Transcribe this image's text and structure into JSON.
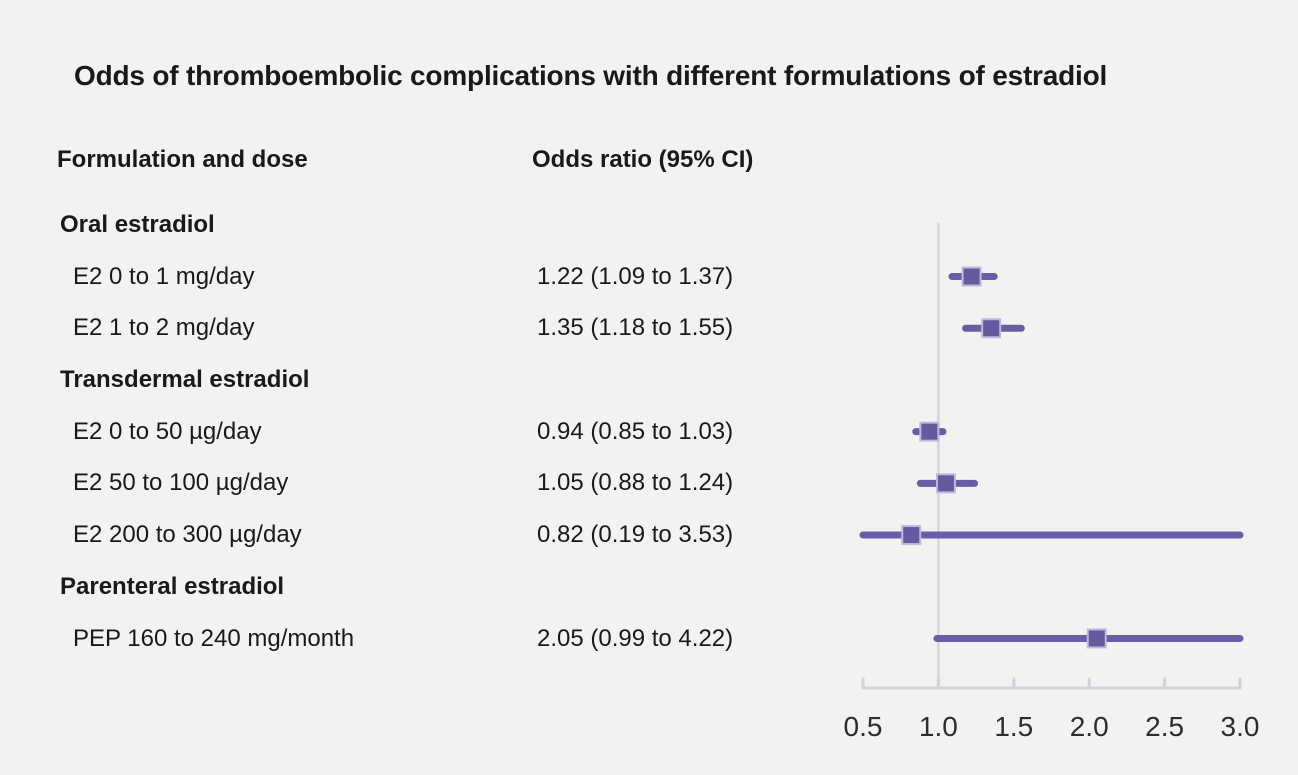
{
  "chart_data": {
    "type": "forest",
    "title": "Odds of thromboembolic complications with different formulations of estradiol",
    "columns": {
      "label": "Formulation and dose",
      "value": "Odds ratio (95% CI)"
    },
    "rows": [
      {
        "label": "Oral estradiol",
        "group": true
      },
      {
        "label": "E2 0 to 1 mg/day",
        "value_text": "1.22 (1.09 to 1.37)",
        "or": 1.22,
        "lo": 1.09,
        "hi": 1.37
      },
      {
        "label": "E2 1 to 2 mg/day",
        "value_text": "1.35 (1.18 to 1.55)",
        "or": 1.35,
        "lo": 1.18,
        "hi": 1.55
      },
      {
        "label": "Transdermal estradiol",
        "group": true
      },
      {
        "label": "E2 0 to 50 µg/day",
        "value_text": "0.94 (0.85 to 1.03)",
        "or": 0.94,
        "lo": 0.85,
        "hi": 1.03
      },
      {
        "label": "E2 50 to 100 µg/day",
        "value_text": "1.05 (0.88 to 1.24)",
        "or": 1.05,
        "lo": 0.88,
        "hi": 1.24
      },
      {
        "label": "E2 200 to 300 µg/day",
        "value_text": "0.82 (0.19 to 3.53)",
        "or": 0.82,
        "lo": 0.19,
        "hi": 3.53
      },
      {
        "label": "Parenteral estradiol",
        "group": true
      },
      {
        "label": "PEP 160 to 240 mg/month",
        "value_text": "2.05 (0.99 to 4.22)",
        "or": 2.05,
        "lo": 0.99,
        "hi": 4.22
      }
    ],
    "xlim": [
      0.5,
      3.0
    ],
    "xticks": [
      0.5,
      1.0,
      1.5,
      2.0,
      2.5,
      3.0
    ],
    "xtick_labels": [
      "0.5",
      "1.0",
      "1.5",
      "2.0",
      "2.5",
      "3.0"
    ],
    "reference_line": 1.0,
    "grid": false,
    "legend": "none",
    "colors": {
      "marker_fill": "#665A9E",
      "marker_edge": "#C2B7E0",
      "ci_line": "#6A5CA5",
      "axis": "#CFD4DC",
      "reference": "#D2D6DE",
      "tick_label": "#2D2D2D",
      "background": "#F2F2F0",
      "text": "#191919"
    }
  }
}
